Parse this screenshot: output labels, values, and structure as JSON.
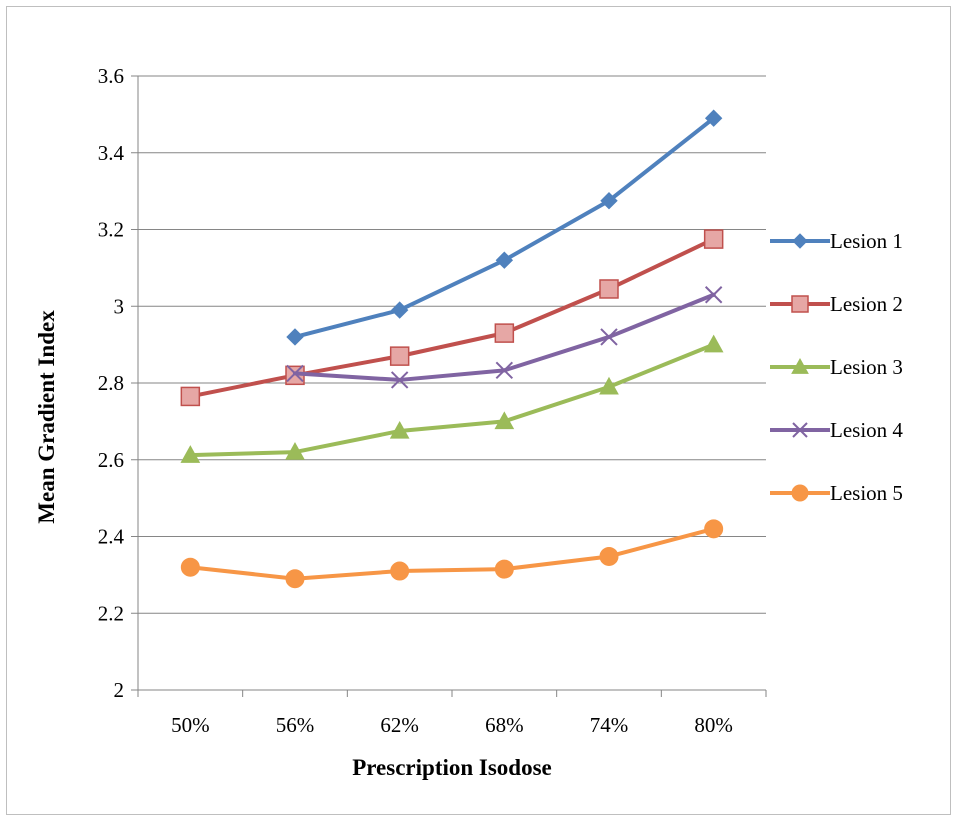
{
  "chart_data": {
    "type": "line",
    "title": "",
    "xlabel": "Prescription Isodose",
    "ylabel": "Mean Gradient Index",
    "categories": [
      "50%",
      "56%",
      "62%",
      "68%",
      "74%",
      "80%"
    ],
    "ylim": [
      2,
      3.6
    ],
    "yticks": [
      "2",
      "2.2",
      "2.4",
      "2.6",
      "2.8",
      "3",
      "3.2",
      "3.4",
      "3.6"
    ],
    "grid": true,
    "legend": "right",
    "series": [
      {
        "name": "Lesion 1",
        "color": "#4f81bd",
        "marker": "diamond",
        "values": [
          null,
          2.92,
          2.99,
          3.12,
          3.275,
          3.49
        ]
      },
      {
        "name": "Lesion 2",
        "color": "#c0504d",
        "marker": "square",
        "values": [
          2.765,
          2.82,
          2.87,
          2.93,
          3.045,
          3.175
        ]
      },
      {
        "name": "Lesion 3",
        "color": "#9bbb59",
        "marker": "triangle",
        "values": [
          2.612,
          2.62,
          2.675,
          2.7,
          2.79,
          2.9
        ]
      },
      {
        "name": "Lesion 4",
        "color": "#8064a2",
        "marker": "x",
        "values": [
          null,
          2.825,
          2.808,
          2.833,
          2.92,
          3.03
        ]
      },
      {
        "name": "Lesion 5",
        "color": "#f79646",
        "marker": "circle",
        "values": [
          2.32,
          2.29,
          2.31,
          2.315,
          2.348,
          2.42
        ]
      }
    ]
  }
}
